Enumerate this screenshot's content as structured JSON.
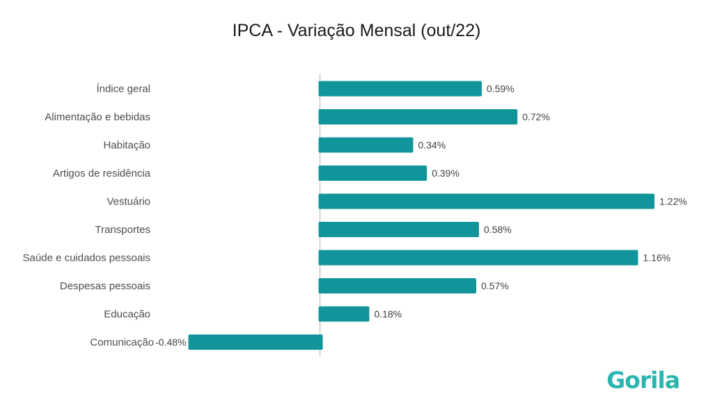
{
  "chart_data": {
    "type": "bar",
    "orientation": "horizontal",
    "title": "IPCA - Variação Mensal (out/22)",
    "categories": [
      "Índice geral",
      "Alimentação e bebidas",
      "Habitação",
      "Artigos de residência",
      "Vestuário",
      "Transportes",
      "Saúde e cuidados pessoais",
      "Despesas pessoais",
      "Educação",
      "Comunicação"
    ],
    "values": [
      0.59,
      0.72,
      0.34,
      0.39,
      1.22,
      0.58,
      1.16,
      0.57,
      0.18,
      -0.48
    ],
    "value_labels": [
      "0.59%",
      "0.72%",
      "0.34%",
      "0.39%",
      "1.22%",
      "0.58%",
      "1.16%",
      "0.57%",
      "0.18%",
      "-0.48%"
    ],
    "xlim": [
      -0.48,
      1.22
    ],
    "grid": false,
    "bar_color": "#12959A"
  },
  "brand": {
    "logo_text": "Gorila",
    "color": "#2BB5B0"
  }
}
